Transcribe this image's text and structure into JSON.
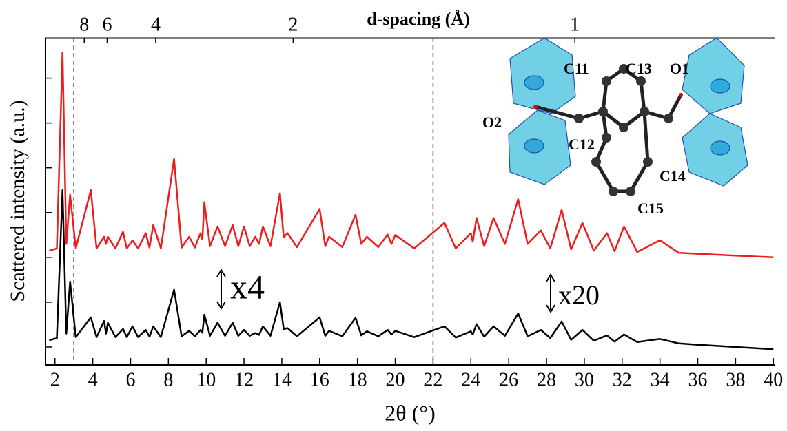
{
  "chart_data": {
    "type": "line",
    "xlabel": "2θ (°)",
    "ylabel": "Scattered intensity (a.u.)",
    "x2label": "d-spacing (Å)",
    "xlim": [
      1.5,
      40.1
    ],
    "xticks": [
      2,
      4,
      6,
      8,
      10,
      12,
      14,
      16,
      18,
      20,
      22,
      24,
      26,
      28,
      30,
      32,
      34,
      36,
      38,
      40
    ],
    "x2ticks": [
      {
        "value": 3.55,
        "label": "8"
      },
      {
        "value": 4.76,
        "label": "6"
      },
      {
        "value": 7.33,
        "label": "4"
      },
      {
        "value": 14.6,
        "label": "2"
      },
      {
        "value": 29.5,
        "label": "1"
      }
    ],
    "ylim": [
      -4,
      69
    ],
    "yticks": [
      0,
      10,
      20,
      30,
      40,
      50,
      60
    ],
    "reference_lines": [
      3,
      22
    ],
    "annotations": [
      "x4",
      "x20"
    ],
    "x": [
      1.7,
      2.1,
      2.4,
      2.6,
      2.8,
      3.1,
      3.9,
      4.2,
      4.6,
      4.7,
      4.8,
      5.2,
      5.6,
      5.8,
      6.1,
      6.4,
      6.8,
      7.0,
      7.2,
      7.6,
      8.3,
      8.7,
      9.1,
      9.4,
      9.7,
      9.8,
      9.9,
      10.2,
      10.6,
      11.0,
      11.4,
      11.7,
      12.0,
      12.3,
      12.6,
      12.8,
      13.0,
      13.4,
      13.9,
      14.1,
      14.3,
      14.8,
      16.0,
      16.3,
      16.5,
      17.2,
      17.9,
      18.2,
      18.5,
      19.1,
      19.6,
      19.8,
      20.0,
      21.0,
      22.6,
      23.2,
      24.0,
      24.1,
      24.3,
      24.7,
      25.2,
      25.8,
      26.5,
      27.0,
      27.7,
      28.2,
      28.8,
      29.3,
      29.9,
      30.5,
      31.2,
      31.6,
      32.1,
      32.8,
      34.0,
      35.0,
      36.0,
      38.0,
      40.0
    ],
    "series": [
      {
        "color": "#ee1c1c",
        "values": [
          21.5,
          22,
          65.7,
          23,
          34,
          22,
          35,
          22,
          24.6,
          23,
          24.6,
          22,
          25.7,
          22,
          23.8,
          22,
          25.4,
          22.2,
          27.2,
          22,
          42,
          22.2,
          24.6,
          22.2,
          25.4,
          24,
          32.3,
          22.5,
          26.9,
          22.5,
          27.2,
          22.5,
          26.9,
          22.5,
          24.6,
          23,
          26.9,
          22.5,
          34.3,
          24.5,
          25.4,
          22.3,
          30.8,
          22.5,
          24.6,
          22.3,
          29.5,
          23,
          24.6,
          22.3,
          25.1,
          23,
          25,
          22,
          27.7,
          22,
          25.4,
          23.5,
          28.8,
          22.5,
          28.8,
          23,
          33,
          23,
          26,
          22,
          30.6,
          21.8,
          27.7,
          21.5,
          25.4,
          21.4,
          26.9,
          21.2,
          23.8,
          21,
          20.8,
          20.4,
          20
        ]
      },
      {
        "color": "#000000",
        "values": [
          1.5,
          2,
          35,
          3,
          14.6,
          2.2,
          6.6,
          2.2,
          5.8,
          3,
          5.4,
          2.2,
          4,
          2.2,
          4.6,
          2.2,
          3.8,
          2.3,
          4.6,
          2.2,
          12.8,
          2.4,
          3.6,
          2.4,
          3.8,
          3.2,
          7.2,
          2.5,
          5.4,
          2.5,
          5.4,
          2.5,
          3.8,
          2.5,
          3.1,
          2.7,
          4.6,
          2.5,
          10,
          4,
          4.2,
          2.4,
          6.6,
          2.5,
          3.6,
          2.4,
          6.5,
          2.6,
          3.5,
          2.4,
          3.8,
          2.8,
          3.6,
          2.2,
          4.6,
          2.1,
          3.5,
          2.8,
          5.1,
          2.3,
          4.6,
          2.5,
          7.5,
          2.4,
          3.8,
          2,
          5.7,
          1.6,
          3.8,
          1.4,
          2.6,
          1.2,
          2.8,
          1.1,
          1.8,
          0.8,
          0.5,
          0,
          -0.5
        ]
      }
    ],
    "inset": {
      "labels": [
        "C11",
        "C13",
        "O1",
        "O2",
        "C12",
        "C14",
        "C15"
      ]
    }
  }
}
